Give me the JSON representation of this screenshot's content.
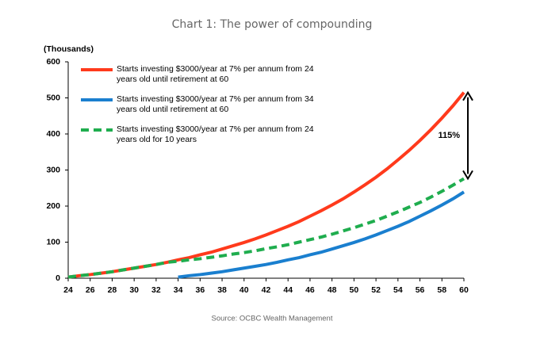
{
  "chart_data": {
    "type": "line",
    "title": "Chart 1: The power of compounding",
    "y_axis_label": "(Thousands)",
    "source": "Source: OCBC Wealth Management",
    "x": [
      24,
      25,
      26,
      27,
      28,
      29,
      30,
      31,
      32,
      33,
      34,
      35,
      36,
      37,
      38,
      39,
      40,
      41,
      42,
      43,
      44,
      45,
      46,
      47,
      48,
      49,
      50,
      51,
      52,
      53,
      54,
      55,
      56,
      57,
      58,
      59,
      60
    ],
    "xlim": [
      24,
      60
    ],
    "xticks": [
      24,
      26,
      28,
      30,
      32,
      34,
      36,
      38,
      40,
      42,
      44,
      46,
      48,
      50,
      52,
      54,
      56,
      58,
      60
    ],
    "ylim": [
      0,
      600
    ],
    "yticks": [
      0,
      100,
      200,
      300,
      400,
      500,
      600
    ],
    "legend": "upper left",
    "series": [
      {
        "name": "Starts investing $3000/year at 7% per annum from 24 years old until retirement at 60",
        "color": "#ff3a1c",
        "dash": "solid",
        "values": [
          3,
          7,
          10,
          14,
          18,
          23,
          28,
          33,
          38,
          44,
          51,
          57,
          65,
          72,
          81,
          90,
          99,
          109,
          120,
          132,
          144,
          157,
          172,
          187,
          203,
          220,
          239,
          259,
          280,
          303,
          328,
          354,
          382,
          412,
          444,
          478,
          515
        ]
      },
      {
        "name": "Starts investing $3000/year at 7% per annum from 34 years old until retirement at 60",
        "color": "#1a7fcf",
        "dash": "solid",
        "values": [
          null,
          null,
          null,
          null,
          null,
          null,
          null,
          null,
          null,
          null,
          3,
          7,
          10,
          14,
          18,
          23,
          28,
          33,
          38,
          44,
          51,
          57,
          65,
          72,
          81,
          90,
          99,
          109,
          120,
          132,
          144,
          157,
          172,
          187,
          203,
          220,
          239
        ]
      },
      {
        "name": "Starts investing $3000/year at 7% per annum from 24 years old for 10 years",
        "color": "#1fad4e",
        "dash": "dashed",
        "values": [
          3,
          7,
          10,
          14,
          18,
          23,
          28,
          33,
          38,
          44,
          47,
          51,
          54,
          58,
          62,
          67,
          71,
          76,
          82,
          87,
          93,
          100,
          107,
          114,
          122,
          131,
          140,
          150,
          160,
          172,
          184,
          197,
          210,
          225,
          241,
          258,
          276
        ]
      }
    ],
    "annotation": "115%"
  }
}
